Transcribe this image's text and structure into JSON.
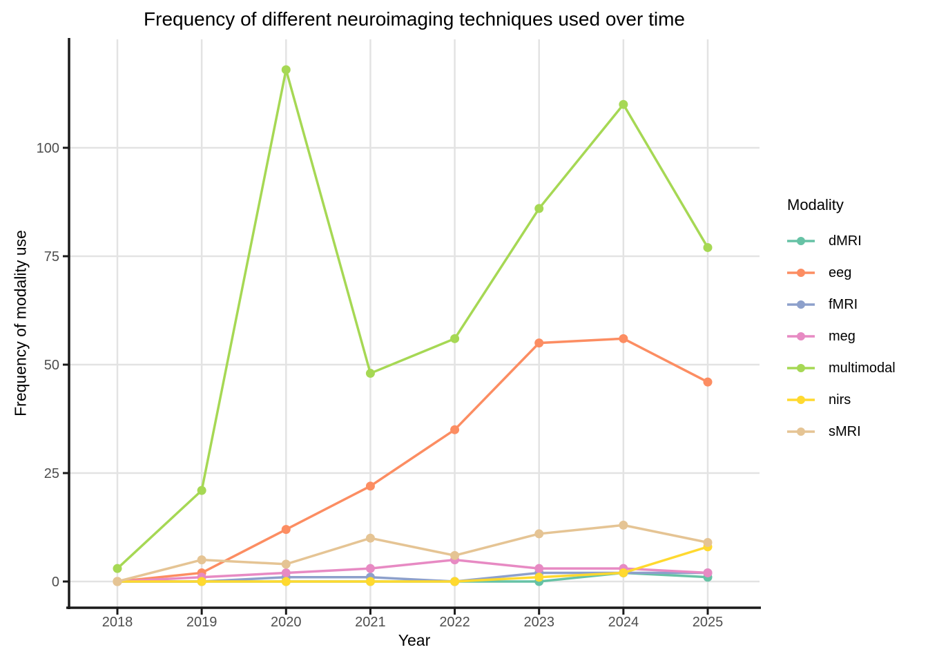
{
  "chart_data": {
    "type": "line",
    "title": "Frequency of different neuroimaging techniques used over time",
    "xlabel": "Year",
    "ylabel": "Frequency of modality use",
    "legend_title": "Modality",
    "legend_position": "right",
    "grid": true,
    "x": [
      2018,
      2019,
      2020,
      2021,
      2022,
      2023,
      2024,
      2025
    ],
    "yticks": [
      0,
      25,
      50,
      75,
      100
    ],
    "ylim": [
      0,
      122
    ],
    "series": [
      {
        "name": "dMRI",
        "color": "#66C2A5",
        "values": [
          0,
          0,
          0,
          0,
          0,
          0,
          2,
          1
        ]
      },
      {
        "name": "eeg",
        "color": "#FC8D62",
        "values": [
          0,
          2,
          12,
          22,
          35,
          55,
          56,
          46
        ]
      },
      {
        "name": "fMRI",
        "color": "#8DA0CB",
        "values": [
          0,
          0,
          1,
          1,
          0,
          2,
          2,
          2
        ]
      },
      {
        "name": "meg",
        "color": "#E78AC3",
        "values": [
          0,
          1,
          2,
          3,
          5,
          3,
          3,
          2
        ]
      },
      {
        "name": "multimodal",
        "color": "#A6D854",
        "values": [
          3,
          21,
          118,
          48,
          56,
          86,
          110,
          77
        ]
      },
      {
        "name": "nirs",
        "color": "#FFD92F",
        "values": [
          0,
          0,
          0,
          0,
          0,
          1,
          2,
          8
        ]
      },
      {
        "name": "sMRI",
        "color": "#E5C494",
        "values": [
          0,
          5,
          4,
          10,
          6,
          11,
          13,
          9
        ]
      }
    ],
    "style": {
      "grid_color": "#E3E3E3",
      "axis_color": "#1A1A1A",
      "tick_label_color": "#4D4D4D",
      "text_color": "#000000",
      "background": "#FFFFFF"
    }
  }
}
